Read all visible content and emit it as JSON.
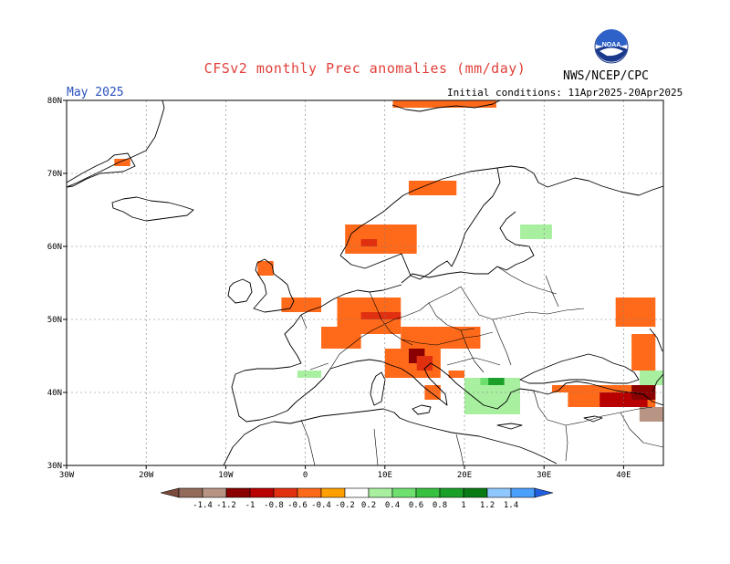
{
  "header": {
    "title": "CFSv2 monthly Prec anomalies (mm/day)",
    "month": "May 2025",
    "initial_conditions": "Initial conditions: 11Apr2025-20Apr2025",
    "agency": "NWS/NCEP/CPC",
    "logo_text": "NOAA"
  },
  "axes": {
    "lon_labels": [
      "30W",
      "20W",
      "10W",
      "0",
      "10E",
      "20E",
      "30E",
      "40E"
    ],
    "lat_labels": [
      "30N",
      "40N",
      "50N",
      "60N",
      "70N",
      "80N"
    ],
    "lon_values": [
      -30,
      -20,
      -10,
      0,
      10,
      20,
      30,
      40
    ],
    "lat_values": [
      30,
      40,
      50,
      60,
      70,
      80
    ],
    "lon_range": [
      -30,
      45
    ],
    "lat_range": [
      30,
      80
    ]
  },
  "colorbar": {
    "labels": [
      "-1.4",
      "-1.2",
      "-1",
      "-0.8",
      "-0.6",
      "-0.4",
      "-0.2",
      "0.2",
      "0.4",
      "0.6",
      "0.8",
      "1",
      "1.2",
      "1.4"
    ],
    "colors": [
      "#7a4a3a",
      "#946a5a",
      "#b89484",
      "#8b0000",
      "#b80000",
      "#e03010",
      "#ff6a1a",
      "#ff9f00",
      "#ffffff",
      "#a8f0a0",
      "#6ee070",
      "#38c040",
      "#1aa028",
      "#0a7a14",
      "#8ec8ff",
      "#4aa0ff",
      "#2060e0"
    ]
  },
  "colors": {
    "land_outline": "#000000",
    "grid": "#7a7a7a",
    "title": "#e0403a",
    "month": "#2a52be"
  },
  "anomaly_regions": [
    {
      "name": "svalbard-fringe",
      "value": -0.2,
      "lon": [
        11,
        24
      ],
      "lat": [
        79,
        80
      ]
    },
    {
      "name": "greenland-tip",
      "value": -0.2,
      "lon": [
        -24,
        -22
      ],
      "lat": [
        71,
        72
      ]
    },
    {
      "name": "norway-north",
      "value": -0.2,
      "lon": [
        13,
        19
      ],
      "lat": [
        67,
        69
      ]
    },
    {
      "name": "norway-south",
      "value": -0.2,
      "lon": [
        5,
        14
      ],
      "lat": [
        59,
        63
      ]
    },
    {
      "name": "norway-core",
      "value": -0.4,
      "lon": [
        7,
        9
      ],
      "lat": [
        60,
        61
      ]
    },
    {
      "name": "scotland",
      "value": -0.2,
      "lon": [
        -6,
        -4
      ],
      "lat": [
        56,
        58
      ]
    },
    {
      "name": "england",
      "value": -0.2,
      "lon": [
        -3,
        2
      ],
      "lat": [
        51,
        53
      ]
    },
    {
      "name": "benelux-germany",
      "value": -0.2,
      "lon": [
        4,
        12
      ],
      "lat": [
        48,
        53
      ]
    },
    {
      "name": "germany-core",
      "value": -0.4,
      "lon": [
        7,
        12
      ],
      "lat": [
        50,
        51
      ]
    },
    {
      "name": "france-east",
      "value": -0.2,
      "lon": [
        2,
        7
      ],
      "lat": [
        46,
        49
      ]
    },
    {
      "name": "alps-east",
      "value": -0.2,
      "lon": [
        12,
        22
      ],
      "lat": [
        46,
        49
      ]
    },
    {
      "name": "italy-north",
      "value": -0.2,
      "lon": [
        10,
        17
      ],
      "lat": [
        42,
        46
      ]
    },
    {
      "name": "italy-core",
      "value": -0.8,
      "lon": [
        13,
        15
      ],
      "lat": [
        44,
        46
      ]
    },
    {
      "name": "italy-adriatic",
      "value": -0.4,
      "lon": [
        14,
        16
      ],
      "lat": [
        43,
        45
      ]
    },
    {
      "name": "italy-south",
      "value": -0.2,
      "lon": [
        15,
        17
      ],
      "lat": [
        39,
        41
      ]
    },
    {
      "name": "balkans",
      "value": -0.2,
      "lon": [
        18,
        20
      ],
      "lat": [
        42,
        43
      ]
    },
    {
      "name": "ukraine-east",
      "value": -0.2,
      "lon": [
        39,
        44
      ],
      "lat": [
        49,
        53
      ]
    },
    {
      "name": "russia-south",
      "value": -0.2,
      "lon": [
        41,
        44
      ],
      "lat": [
        43,
        48
      ]
    },
    {
      "name": "turkey",
      "value": -0.2,
      "lon": [
        31,
        44
      ],
      "lat": [
        38,
        41
      ]
    },
    {
      "name": "turkey-core",
      "value": -0.6,
      "lon": [
        37,
        43
      ],
      "lat": [
        38,
        40
      ]
    },
    {
      "name": "turkey-east",
      "value": -0.8,
      "lon": [
        41,
        44
      ],
      "lat": [
        39,
        41
      ]
    },
    {
      "name": "caucasus-south",
      "value": -1,
      "lon": [
        42,
        45
      ],
      "lat": [
        36,
        38
      ]
    },
    {
      "name": "russia-north",
      "value": 0.2,
      "lon": [
        31,
        44
      ],
      "lat": [
        60,
        63
      ]
    },
    {
      "name": "russia-northwest",
      "value": 0.2,
      "lon": [
        38,
        44
      ],
      "lat": [
        66,
        68
      ]
    },
    {
      "name": "karelia",
      "value": 0.4,
      "lon": [
        27,
        31
      ],
      "lat": [
        61,
        63
      ]
    },
    {
      "name": "baltic",
      "value": 0.2,
      "lon": [
        26,
        30
      ],
      "lat": [
        56,
        59
      ]
    },
    {
      "name": "russia-central",
      "value": 0.2,
      "lon": [
        38,
        42
      ],
      "lat": [
        53,
        55
      ]
    },
    {
      "name": "belarus",
      "value": 0.2,
      "lon": [
        33,
        35
      ],
      "lat": [
        51,
        53
      ]
    },
    {
      "name": "iberia-west",
      "value": 0.2,
      "lon": [
        -9,
        -7
      ],
      "lat": [
        38,
        42
      ]
    },
    {
      "name": "iberia-center",
      "value": 0.2,
      "lon": [
        -4,
        -1
      ],
      "lat": [
        38,
        41
      ]
    },
    {
      "name": "iberia-north",
      "value": 0.4,
      "lon": [
        -1,
        2
      ],
      "lat": [
        42,
        43
      ]
    },
    {
      "name": "north-africa",
      "value": 0.2,
      "lon": [
        0,
        8
      ],
      "lat": [
        33,
        35
      ]
    },
    {
      "name": "greece",
      "value": 0.4,
      "lon": [
        20,
        27
      ],
      "lat": [
        37,
        42
      ]
    },
    {
      "name": "greece-core",
      "value": 0.6,
      "lon": [
        22,
        25
      ],
      "lat": [
        41,
        42
      ]
    },
    {
      "name": "bulgaria",
      "value": 1,
      "lon": [
        23,
        25
      ],
      "lat": [
        41,
        42
      ]
    },
    {
      "name": "aegean-east",
      "value": 0.2,
      "lon": [
        29,
        33
      ],
      "lat": [
        38,
        40
      ]
    },
    {
      "name": "caucasus-north",
      "value": 0.4,
      "lon": [
        42,
        45
      ],
      "lat": [
        41,
        43
      ]
    },
    {
      "name": "poland",
      "value": 0.2,
      "lon": [
        15,
        22
      ],
      "lat": [
        51,
        53
      ]
    }
  ]
}
